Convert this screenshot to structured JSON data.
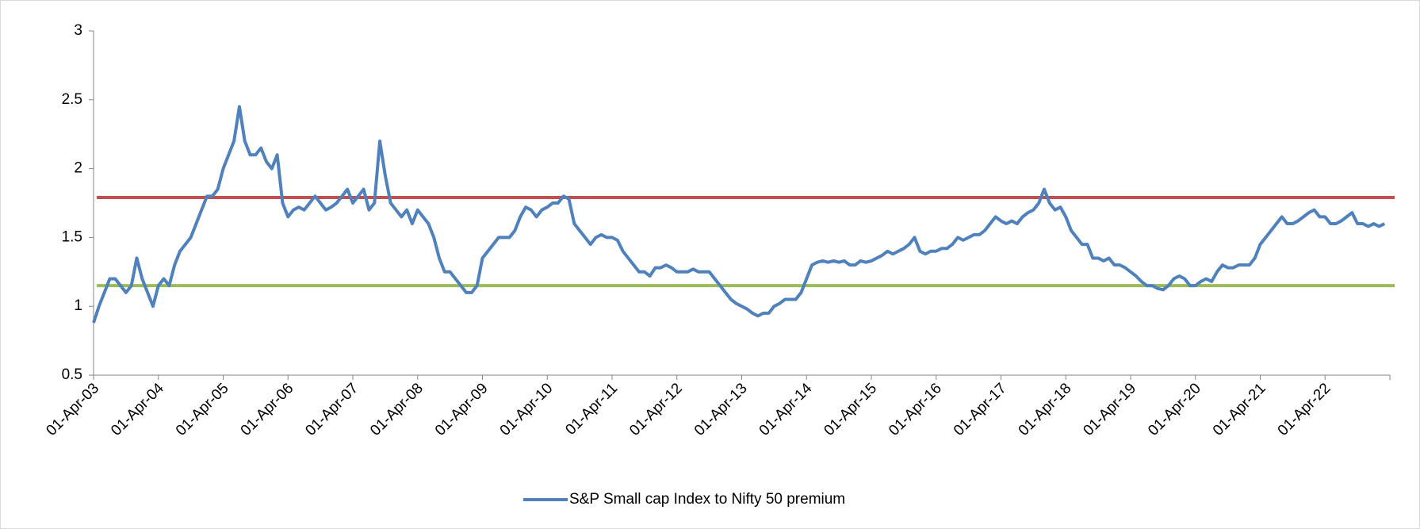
{
  "chart_data": {
    "type": "line",
    "categories": [
      "01-Apr-03",
      null,
      null,
      null,
      null,
      null,
      null,
      null,
      null,
      null,
      null,
      null,
      "01-Apr-04",
      null,
      null,
      null,
      null,
      null,
      null,
      null,
      null,
      null,
      null,
      null,
      "01-Apr-05",
      null,
      null,
      null,
      null,
      null,
      null,
      null,
      null,
      null,
      null,
      null,
      "01-Apr-06",
      null,
      null,
      null,
      null,
      null,
      null,
      null,
      null,
      null,
      null,
      null,
      "01-Apr-07",
      null,
      null,
      null,
      null,
      null,
      null,
      null,
      null,
      null,
      null,
      null,
      "01-Apr-08",
      null,
      null,
      null,
      null,
      null,
      null,
      null,
      null,
      null,
      null,
      null,
      "01-Apr-09",
      null,
      null,
      null,
      null,
      null,
      null,
      null,
      null,
      null,
      null,
      null,
      "01-Apr-10",
      null,
      null,
      null,
      null,
      null,
      null,
      null,
      null,
      null,
      null,
      null,
      "01-Apr-11",
      null,
      null,
      null,
      null,
      null,
      null,
      null,
      null,
      null,
      null,
      null,
      "01-Apr-12",
      null,
      null,
      null,
      null,
      null,
      null,
      null,
      null,
      null,
      null,
      null,
      "01-Apr-13",
      null,
      null,
      null,
      null,
      null,
      null,
      null,
      null,
      null,
      null,
      null,
      "01-Apr-14",
      null,
      null,
      null,
      null,
      null,
      null,
      null,
      null,
      null,
      null,
      null,
      "01-Apr-15",
      null,
      null,
      null,
      null,
      null,
      null,
      null,
      null,
      null,
      null,
      null,
      "01-Apr-16",
      null,
      null,
      null,
      null,
      null,
      null,
      null,
      null,
      null,
      null,
      null,
      "01-Apr-17",
      null,
      null,
      null,
      null,
      null,
      null,
      null,
      null,
      null,
      null,
      null,
      "01-Apr-18",
      null,
      null,
      null,
      null,
      null,
      null,
      null,
      null,
      null,
      null,
      null,
      "01-Apr-19",
      null,
      null,
      null,
      null,
      null,
      null,
      null,
      null,
      null,
      null,
      null,
      "01-Apr-20",
      null,
      null,
      null,
      null,
      null,
      null,
      null,
      null,
      null,
      null,
      null,
      "01-Apr-21",
      null,
      null,
      null,
      null,
      null,
      null,
      null,
      null,
      null,
      null,
      null,
      "01-Apr-22",
      null,
      null,
      null,
      null,
      null,
      null,
      null,
      null,
      null,
      null,
      null
    ],
    "series": [
      {
        "name": "S&P Small cap Index to Nifty 50 premium",
        "color": "#4f81bd",
        "values": [
          0.88,
          1.0,
          1.1,
          1.2,
          1.2,
          1.15,
          1.1,
          1.15,
          1.35,
          1.2,
          1.1,
          1.0,
          1.15,
          1.2,
          1.15,
          1.3,
          1.4,
          1.45,
          1.5,
          1.6,
          1.7,
          1.8,
          1.8,
          1.85,
          2.0,
          2.1,
          2.2,
          2.45,
          2.2,
          2.1,
          2.1,
          2.15,
          2.05,
          2.0,
          2.1,
          1.75,
          1.65,
          1.7,
          1.72,
          1.7,
          1.75,
          1.8,
          1.75,
          1.7,
          1.72,
          1.75,
          1.8,
          1.85,
          1.75,
          1.8,
          1.85,
          1.7,
          1.75,
          2.2,
          1.95,
          1.75,
          1.7,
          1.65,
          1.7,
          1.6,
          1.7,
          1.65,
          1.6,
          1.5,
          1.35,
          1.25,
          1.25,
          1.2,
          1.15,
          1.1,
          1.1,
          1.15,
          1.35,
          1.4,
          1.45,
          1.5,
          1.5,
          1.5,
          1.55,
          1.65,
          1.72,
          1.7,
          1.65,
          1.7,
          1.72,
          1.75,
          1.75,
          1.8,
          1.78,
          1.6,
          1.55,
          1.5,
          1.45,
          1.5,
          1.52,
          1.5,
          1.5,
          1.48,
          1.4,
          1.35,
          1.3,
          1.25,
          1.25,
          1.22,
          1.28,
          1.28,
          1.3,
          1.28,
          1.25,
          1.25,
          1.25,
          1.27,
          1.25,
          1.25,
          1.25,
          1.2,
          1.15,
          1.1,
          1.05,
          1.02,
          1.0,
          0.98,
          0.95,
          0.93,
          0.95,
          0.95,
          1.0,
          1.02,
          1.05,
          1.05,
          1.05,
          1.1,
          1.2,
          1.3,
          1.32,
          1.33,
          1.32,
          1.33,
          1.32,
          1.33,
          1.3,
          1.3,
          1.33,
          1.32,
          1.33,
          1.35,
          1.37,
          1.4,
          1.38,
          1.4,
          1.42,
          1.45,
          1.5,
          1.4,
          1.38,
          1.4,
          1.4,
          1.42,
          1.42,
          1.45,
          1.5,
          1.48,
          1.5,
          1.52,
          1.52,
          1.55,
          1.6,
          1.65,
          1.62,
          1.6,
          1.62,
          1.6,
          1.65,
          1.68,
          1.7,
          1.75,
          1.85,
          1.75,
          1.7,
          1.72,
          1.65,
          1.55,
          1.5,
          1.45,
          1.45,
          1.35,
          1.35,
          1.33,
          1.35,
          1.3,
          1.3,
          1.28,
          1.25,
          1.22,
          1.18,
          1.15,
          1.15,
          1.13,
          1.12,
          1.15,
          1.2,
          1.22,
          1.2,
          1.15,
          1.15,
          1.18,
          1.2,
          1.18,
          1.25,
          1.3,
          1.28,
          1.28,
          1.3,
          1.3,
          1.3,
          1.35,
          1.45,
          1.5,
          1.55,
          1.6,
          1.65,
          1.6,
          1.6,
          1.62,
          1.65,
          1.68,
          1.7,
          1.65,
          1.65,
          1.6,
          1.6,
          1.62,
          1.65,
          1.68,
          1.6,
          1.6,
          1.58,
          1.6,
          1.58,
          1.6
        ]
      }
    ],
    "reference_lines": [
      {
        "value": 1.79,
        "color": "#c0504d"
      },
      {
        "value": 1.15,
        "color": "#9bbb59"
      }
    ],
    "ylim": [
      0.5,
      3
    ],
    "yticks": [
      0.5,
      1,
      1.5,
      2,
      2.5,
      3
    ],
    "grid": false,
    "legend": "bottom"
  }
}
